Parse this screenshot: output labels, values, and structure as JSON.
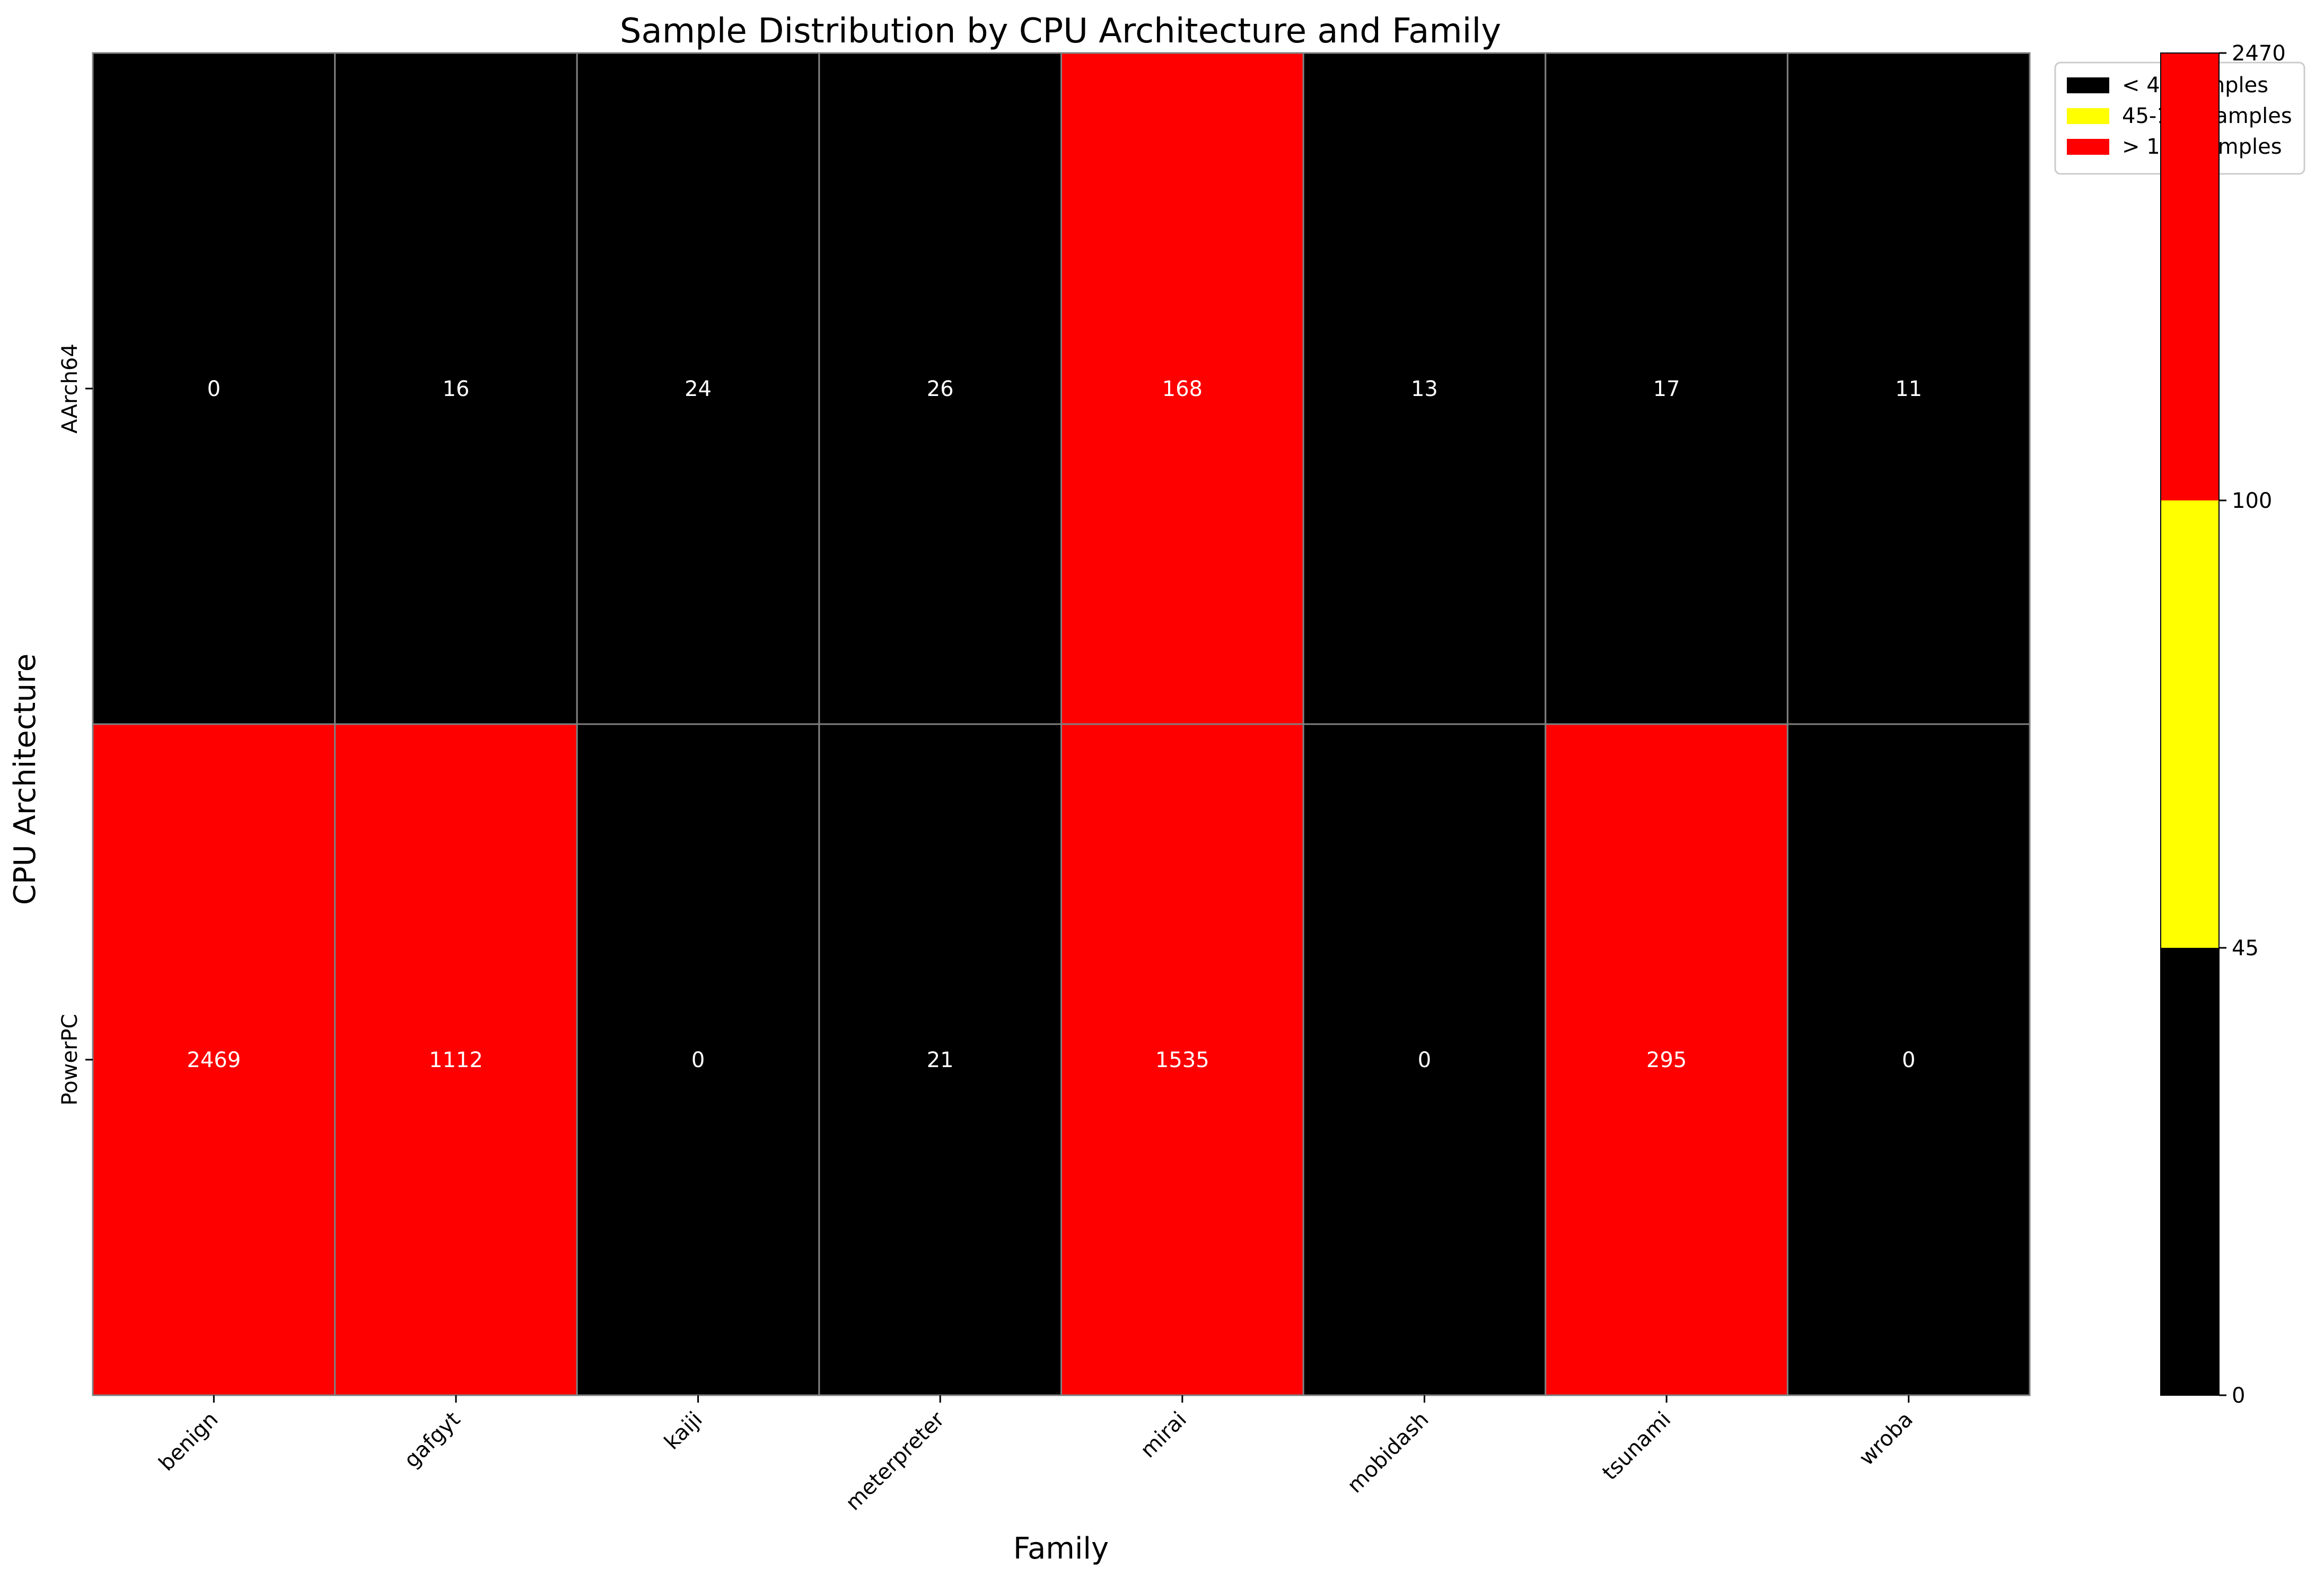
{
  "chart_data": {
    "type": "heatmap",
    "title": "Sample Distribution by CPU Architecture and Family",
    "xlabel": "Family",
    "ylabel": "CPU Architecture",
    "x_categories": [
      "benign",
      "gafgyt",
      "kaiji",
      "meterpreter",
      "mirai",
      "mobidash",
      "tsunami",
      "wroba"
    ],
    "y_categories": [
      "AArch64",
      "PowerPC"
    ],
    "values": [
      [
        0,
        16,
        24,
        26,
        168,
        13,
        17,
        11
      ],
      [
        2469,
        1112,
        0,
        21,
        1535,
        0,
        295,
        0
      ]
    ],
    "thresholds": [
      0,
      45,
      100,
      2470
    ],
    "colors": [
      "#000000",
      "#ffff00",
      "#ff0000"
    ],
    "grid_line_color": "#808080",
    "colorbar_ticks": [
      "0",
      "45",
      "100",
      "2470"
    ],
    "legend": {
      "placement": "top-right",
      "entries": [
        {
          "label": "< 45 samples",
          "color": "#000000"
        },
        {
          "label": "45-100 samples",
          "color": "#ffff00"
        },
        {
          "label": "> 100 samples",
          "color": "#ff0000"
        }
      ]
    }
  }
}
